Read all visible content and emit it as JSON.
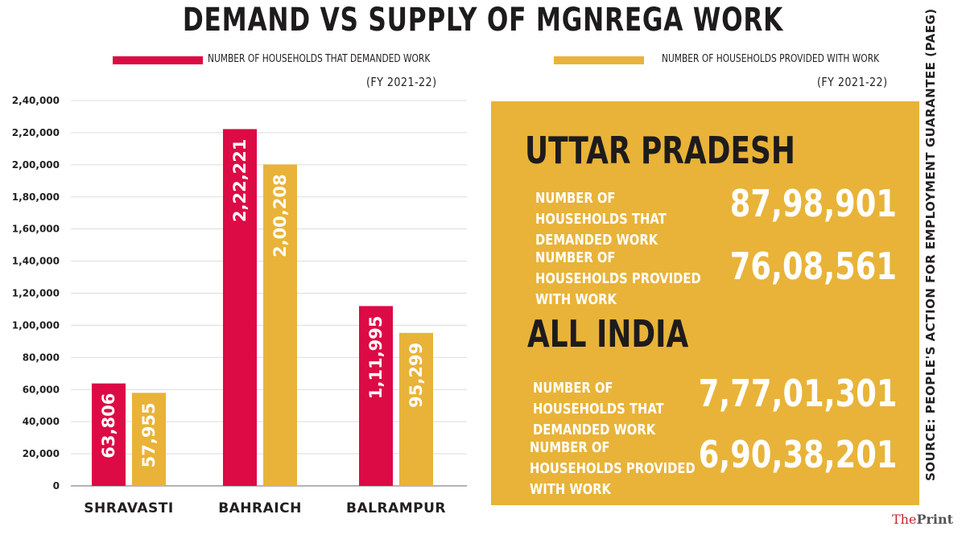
{
  "title": "DEMAND VS SUPPLY OF MGNREGA WORK",
  "legend": {
    "demanded": {
      "label": "NUMBER OF HOUSEHOLDS THAT DEMANDED WORK",
      "fy": "(FY 2021-22)",
      "color": "#dc0a45"
    },
    "provided": {
      "label": "NUMBER OF HOUSEHOLDS PROVIDED WITH WORK",
      "fy": "(FY 2021-22)",
      "color": "#e8b338"
    }
  },
  "chart_data": {
    "type": "bar",
    "categories": [
      "SHRAVASTI",
      "BAHRAICH",
      "BALRAMPUR"
    ],
    "series": [
      {
        "name": "NUMBER OF HOUSEHOLDS THAT DEMANDED WORK",
        "values": [
          63806,
          222221,
          111995
        ],
        "labels": [
          "63,806",
          "2,22,221",
          "1,11,995"
        ],
        "color": "#dc0a45"
      },
      {
        "name": "NUMBER OF HOUSEHOLDS PROVIDED WITH WORK",
        "values": [
          57955,
          200208,
          95299
        ],
        "labels": [
          "57,955",
          "2,00,208",
          "95,299"
        ],
        "color": "#e8b338"
      }
    ],
    "ylim": [
      0,
      240000
    ],
    "yticks": [
      0,
      20000,
      40000,
      60000,
      80000,
      100000,
      120000,
      140000,
      160000,
      180000,
      200000,
      220000,
      240000
    ],
    "ytick_labels": [
      "0",
      "20,000",
      "40,000",
      "60,000",
      "80,000",
      "1,00,000",
      "1,20,000",
      "1,40,000",
      "1,60,000",
      "1,80,000",
      "2,00,000",
      "2,20,000",
      "2,40,000"
    ],
    "grid": true
  },
  "panel": {
    "color": "#e8b338",
    "up": {
      "region": "UTTAR PRADESH",
      "demanded_label": "NUMBER OF HOUSEHOLDS THAT DEMANDED WORK",
      "demanded_value": "87,98,901",
      "provided_label": "NUMBER OF HOUSEHOLDS PROVIDED WITH WORK",
      "provided_value": "76,08,561"
    },
    "india": {
      "region": "ALL INDIA",
      "demanded_label": "NUMBER OF HOUSEHOLDS THAT DEMANDED WORK",
      "demanded_value": "7,77,01,301",
      "provided_label": "NUMBER OF HOUSEHOLDS PROVIDED WITH WORK",
      "provided_value": "6,90,38,201"
    }
  },
  "source": "SOURCE: PEOPLE'S ACTION FOR EMPLOYMENT GUARANTEE (PAEG)",
  "logo": {
    "part1": "The",
    "part2": "Print"
  }
}
